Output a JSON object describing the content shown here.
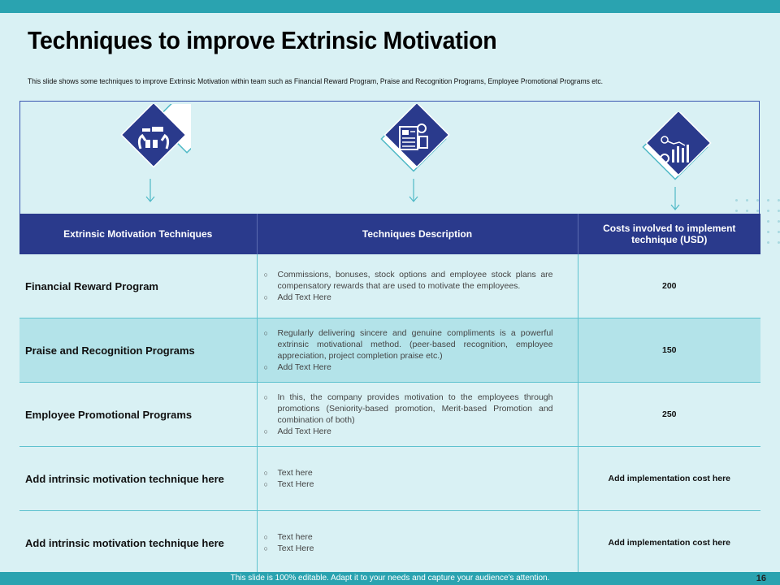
{
  "header": {
    "title": "Techniques to improve Extrinsic Motivation",
    "subtitle": "This slide shows some techniques to improve Extrinsic Motivation within team such as Financial Reward Program, Praise and Recognition Programs, Employee Promotional Programs etc."
  },
  "icons": [
    {
      "name": "reward-hands-icon"
    },
    {
      "name": "document-report-icon"
    },
    {
      "name": "money-growth-chart-icon"
    }
  ],
  "table": {
    "headers": [
      "Extrinsic Motivation Techniques",
      "Techniques Description",
      "Costs involved to implement technique (USD)"
    ],
    "rows": [
      {
        "technique": "Financial Reward Program",
        "bullets": [
          "Commissions, bonuses, stock options and employee stock plans are compensatory rewards that are used to motivate the employees.",
          "Add Text Here"
        ],
        "cost": "200"
      },
      {
        "technique": "Praise and Recognition Programs",
        "bullets": [
          "Regularly delivering sincere and genuine compliments is a powerful extrinsic motivational method. (peer-based recognition, employee appreciation, project completion praise etc.)",
          "Add Text Here"
        ],
        "cost": "150"
      },
      {
        "technique": "Employee Promotional Programs",
        "bullets": [
          "In this, the company provides motivation to the employees through promotions (Seniority-based promotion, Merit-based Promotion and combination of both)",
          "Add Text Here"
        ],
        "cost": "250"
      },
      {
        "technique": "Add intrinsic motivation technique here",
        "bullets": [
          "Text here",
          "Text Here"
        ],
        "cost": "Add implementation cost here"
      },
      {
        "technique": "Add intrinsic motivation technique here",
        "bullets": [
          "Text here",
          "Text Here"
        ],
        "cost": "Add implementation cost here"
      }
    ]
  },
  "footer": {
    "message": "This slide is 100% editable. Adapt it to your needs and capture your audience's attention.",
    "page": "16"
  },
  "colors": {
    "accent": "#2aa3b0",
    "header_bg": "#2a3a8c",
    "background": "#d9f1f4",
    "alt_row": "#b3e3e9"
  }
}
